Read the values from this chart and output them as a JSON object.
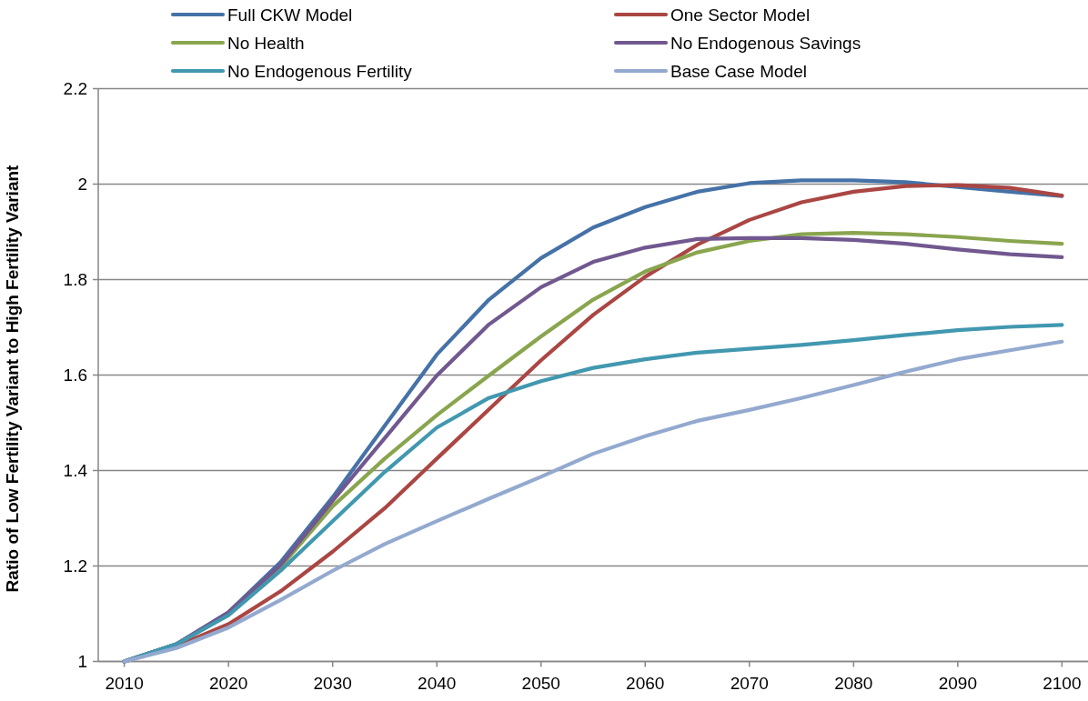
{
  "chart_data": {
    "type": "line",
    "ylabel": "Ratio of Low Fertility Variant to High Fertility Variant",
    "x": [
      2010,
      2015,
      2020,
      2025,
      2030,
      2035,
      2040,
      2045,
      2050,
      2055,
      2060,
      2065,
      2070,
      2075,
      2080,
      2085,
      2090,
      2095,
      2100
    ],
    "xlim": [
      2007.5,
      2102.5
    ],
    "xticks": [
      2010,
      2020,
      2030,
      2040,
      2050,
      2060,
      2070,
      2080,
      2090,
      2100
    ],
    "ylim": [
      1,
      2.2
    ],
    "yticks": [
      1,
      1.2,
      1.4,
      1.6,
      1.8,
      2,
      2.2
    ],
    "grid": "y",
    "legend": "top",
    "marker": "none",
    "line_style": "solid",
    "series": [
      {
        "name": "Full CKW Model",
        "color": "#4572a7",
        "values": [
          1.0,
          1.036,
          1.103,
          1.208,
          1.344,
          1.494,
          1.643,
          1.758,
          1.845,
          1.909,
          1.952,
          1.984,
          2.002,
          2.008,
          2.008,
          2.004,
          1.994,
          1.984,
          1.975
        ]
      },
      {
        "name": "One Sector Model",
        "color": "#aa4643",
        "values": [
          1.0,
          1.032,
          1.078,
          1.147,
          1.23,
          1.321,
          1.425,
          1.528,
          1.631,
          1.726,
          1.806,
          1.873,
          1.925,
          1.962,
          1.984,
          1.996,
          1.998,
          1.992,
          1.976
        ]
      },
      {
        "name": "No Health",
        "color": "#89a54e",
        "values": [
          1.0,
          1.036,
          1.099,
          1.198,
          1.325,
          1.425,
          1.516,
          1.599,
          1.681,
          1.758,
          1.817,
          1.857,
          1.881,
          1.895,
          1.898,
          1.895,
          1.889,
          1.881,
          1.875
        ]
      },
      {
        "name": "No Endogenous Savings",
        "color": "#71588f",
        "values": [
          1.0,
          1.036,
          1.103,
          1.202,
          1.337,
          1.468,
          1.599,
          1.706,
          1.784,
          1.837,
          1.867,
          1.885,
          1.887,
          1.887,
          1.883,
          1.875,
          1.863,
          1.853,
          1.847
        ]
      },
      {
        "name": "No Endogenous Fertility",
        "color": "#4198af",
        "values": [
          1.0,
          1.036,
          1.097,
          1.19,
          1.294,
          1.397,
          1.49,
          1.552,
          1.587,
          1.615,
          1.633,
          1.647,
          1.655,
          1.663,
          1.673,
          1.684,
          1.694,
          1.701,
          1.705
        ]
      },
      {
        "name": "Base Case Model",
        "color": "#93a9cf",
        "values": [
          1.0,
          1.028,
          1.071,
          1.129,
          1.19,
          1.246,
          1.294,
          1.341,
          1.387,
          1.435,
          1.472,
          1.504,
          1.527,
          1.552,
          1.579,
          1.607,
          1.633,
          1.652,
          1.67
        ]
      }
    ]
  }
}
